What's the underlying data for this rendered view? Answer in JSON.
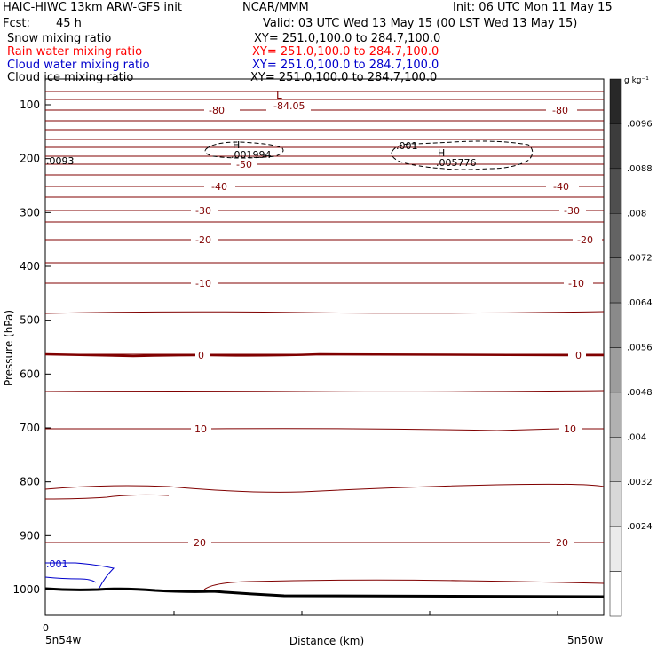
{
  "header": {
    "model_title": "HAIC-HIWC 13km ARW-GFS init",
    "org": "NCAR/MMM",
    "init": "Init: 06 UTC Mon 11 May 15",
    "fcst_label": "Fcst:",
    "fcst_value": "45 h",
    "valid": "Valid: 03 UTC Wed 13 May 15 (00 LST Wed 13 May 15)"
  },
  "fields": [
    {
      "name": "Snow mixing ratio",
      "xy": "XY= 251.0,100.0 to 284.7,100.0",
      "color": "#000000"
    },
    {
      "name": "Rain water mixing ratio",
      "xy": "XY= 251.0,100.0 to 284.7,100.0",
      "color": "#ff0000"
    },
    {
      "name": "Cloud water mixing ratio",
      "xy": "XY= 251.0,100.0 to 284.7,100.0",
      "color": "#0000cc"
    },
    {
      "name": "Cloud ice mixing ratio",
      "xy": "XY= 251.0,100.0 to 284.7,100.0",
      "color": "#000000"
    }
  ],
  "chart_data": {
    "type": "contour",
    "ylabel": "Pressure (hPa)",
    "xlabel": "Distance (km)",
    "y_ticks": [
      100,
      200,
      300,
      400,
      500,
      600,
      700,
      800,
      900,
      1000
    ],
    "x_tick_zero": "0",
    "x_left_label": "5n54w",
    "x_right_label": "5n50w",
    "temperature_contours": [
      {
        "value": -80,
        "label": "-80",
        "color": "#800000"
      },
      {
        "value": -50,
        "label": "-50",
        "color": "#800000"
      },
      {
        "value": -40,
        "label": "-40",
        "color": "#800000"
      },
      {
        "value": -30,
        "label": "-30",
        "color": "#800000"
      },
      {
        "value": -20,
        "label": "-20",
        "color": "#800000"
      },
      {
        "value": -10,
        "label": "-10",
        "color": "#800000"
      },
      {
        "value": 0,
        "label": "0",
        "color": "#800000"
      },
      {
        "value": 10,
        "label": "10",
        "color": "#800000"
      },
      {
        "value": 20,
        "label": "20",
        "color": "#800000"
      }
    ],
    "extrema": [
      {
        "type": "L",
        "value": "-84.05",
        "color": "#800000"
      },
      {
        "type": "H",
        "value": ".001994",
        "color": "#000000"
      },
      {
        "type": "H",
        "value": ".005776",
        "color": "#000000"
      }
    ],
    "contour_labels": [
      {
        "text": ".001",
        "color": "#000000"
      },
      {
        "text": ".001",
        "color": "#0000cc"
      },
      {
        "text": ".0093",
        "color": "#000000"
      }
    ],
    "colorbar": {
      "unit": "g kg⁻¹",
      "labels": [
        ".0096",
        ".0088",
        ".008",
        ".0072",
        ".0064",
        ".0056",
        ".0048",
        ".004",
        ".0032",
        ".0024"
      ]
    }
  }
}
